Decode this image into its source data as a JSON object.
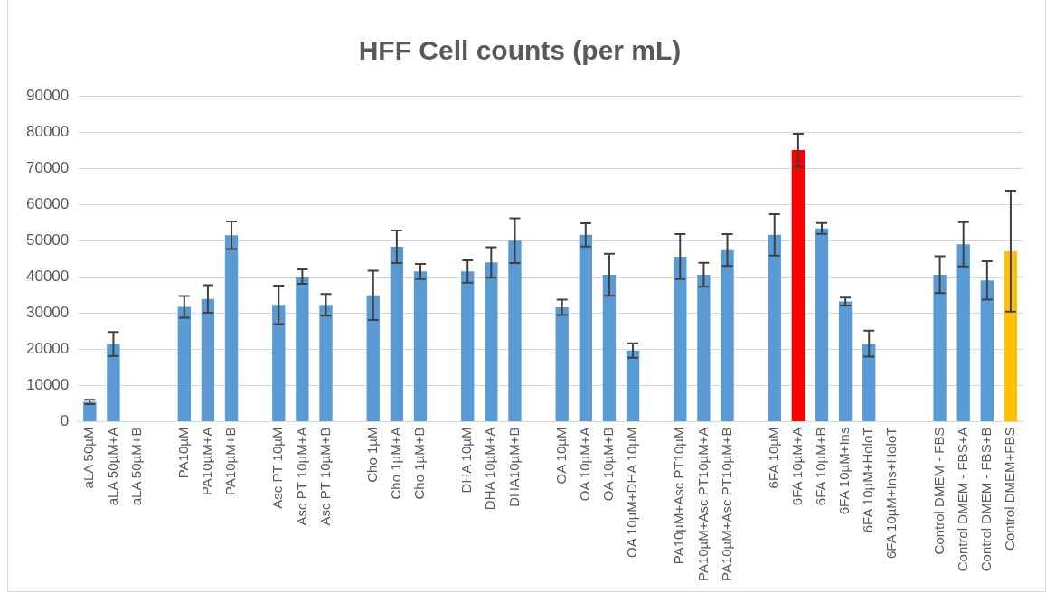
{
  "chart_data": {
    "type": "bar",
    "title": "HFF Cell counts (per mL)",
    "categories": [
      "aLA 50µM",
      "aLA 50µM+A",
      "aLA 50µM+B",
      null,
      "PA10µM",
      "PA10µM+A",
      "PA10µM+B",
      null,
      "Asc PT 10µM",
      "Asc PT 10µM+A",
      "Asc PT 10µM+B",
      null,
      "Cho 1µM",
      "Cho 1µM+A",
      "Cho 1µM+B",
      null,
      "DHA 10µM",
      "DHA 10µM+A",
      "DHA10µM+B",
      null,
      "OA 10µM",
      "OA 10µM+A",
      "OA 10µM+B",
      "OA 10µM+DHA 10µM",
      null,
      "PA10µM+Asc PT10µM",
      "PA10µM+Asc PT10µM+A",
      "PA10µM+Asc PT10µM+B",
      null,
      "6FA 10µM",
      "6FA 10µM+A",
      "6FA 10µM+B",
      "6FA 10µM+Ins",
      "6FA 10µM+HoloT",
      "6FA 10µM+Ins+HoloT",
      null,
      "Control DMEM - FBS",
      "Control DMEM - FBS+A",
      "Control DMEM - FBS+B",
      "Control DMEM+FBS"
    ],
    "values": [
      5500,
      21500,
      null,
      null,
      31700,
      33900,
      51500,
      null,
      32300,
      40100,
      32300,
      null,
      34900,
      48300,
      41500,
      null,
      41500,
      44000,
      50000,
      null,
      31600,
      51600,
      40600,
      19700,
      null,
      45600,
      40600,
      47400,
      null,
      51600,
      75000,
      53400,
      33200,
      21600,
      null,
      null,
      40600,
      49000,
      39000,
      47100
    ],
    "errors": [
      600,
      3300,
      null,
      null,
      3000,
      3800,
      3800,
      null,
      5300,
      2000,
      3000,
      null,
      6800,
      4500,
      2100,
      null,
      3100,
      4200,
      6200,
      null,
      2100,
      3200,
      5800,
      2000,
      null,
      6200,
      3300,
      4400,
      null,
      5700,
      4500,
      1500,
      1100,
      3600,
      null,
      null,
      5100,
      6100,
      5300,
      16700
    ],
    "colors": [
      "#5b9bd5",
      "#5b9bd5",
      "#5b9bd5",
      "#5b9bd5",
      "#5b9bd5",
      "#5b9bd5",
      "#5b9bd5",
      "#5b9bd5",
      "#5b9bd5",
      "#5b9bd5",
      "#5b9bd5",
      "#5b9bd5",
      "#5b9bd5",
      "#5b9bd5",
      "#5b9bd5",
      "#5b9bd5",
      "#5b9bd5",
      "#5b9bd5",
      "#5b9bd5",
      "#5b9bd5",
      "#5b9bd5",
      "#5b9bd5",
      "#5b9bd5",
      "#5b9bd5",
      "#5b9bd5",
      "#5b9bd5",
      "#5b9bd5",
      "#5b9bd5",
      "#5b9bd5",
      "#5b9bd5",
      "#ff0000",
      "#5b9bd5",
      "#5b9bd5",
      "#5b9bd5",
      "#5b9bd5",
      "#5b9bd5",
      "#5b9bd5",
      "#5b9bd5",
      "#5b9bd5",
      "#ffc000"
    ],
    "ylim": [
      0,
      90000
    ],
    "yticks": [
      0,
      10000,
      20000,
      30000,
      40000,
      50000,
      60000,
      70000,
      80000,
      90000
    ],
    "grid": "y",
    "legend": false
  }
}
